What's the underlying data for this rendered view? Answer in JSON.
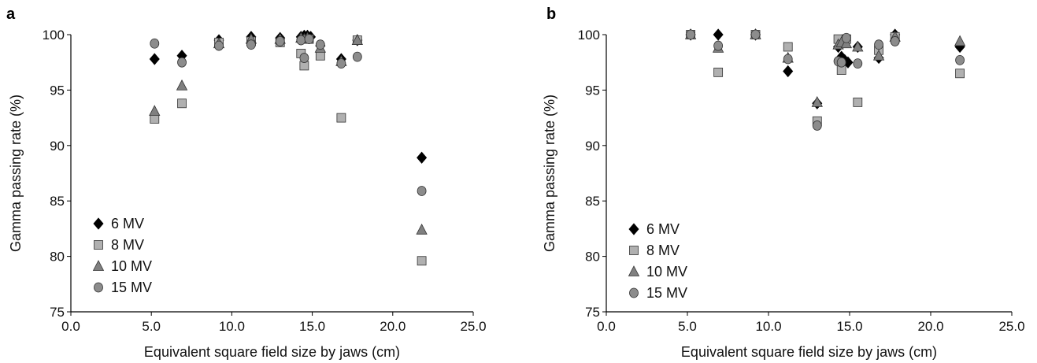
{
  "chart_data": [
    {
      "type": "scatter",
      "panel_label": "a",
      "xlabel": "Equivalent square field size by jaws (cm)",
      "ylabel": "Gamma passing rate (%)",
      "xlim": [
        0,
        25
      ],
      "ylim": [
        75,
        100
      ],
      "xticks": [
        "0.0",
        "5.0",
        "10.0",
        "15.0",
        "20.0",
        "25.0"
      ],
      "yticks": [
        "75",
        "80",
        "85",
        "90",
        "95",
        "100"
      ],
      "grid": false,
      "legend_position": "bottom-left",
      "series": [
        {
          "name": "6 MV",
          "marker": "diamond",
          "color": "#000000",
          "points": [
            [
              5.2,
              97.8
            ],
            [
              6.9,
              98.1
            ],
            [
              9.2,
              99.5
            ],
            [
              11.2,
              99.8
            ],
            [
              13.0,
              99.7
            ],
            [
              14.3,
              99.8
            ],
            [
              14.5,
              99.9
            ],
            [
              14.7,
              99.9
            ],
            [
              14.9,
              99.8
            ],
            [
              15.5,
              99.0
            ],
            [
              16.8,
              97.8
            ],
            [
              17.8,
              99.5
            ],
            [
              21.8,
              88.9
            ]
          ]
        },
        {
          "name": "8 MV",
          "marker": "square",
          "color": "#b0b0b0",
          "points": [
            [
              5.2,
              92.4
            ],
            [
              6.9,
              93.8
            ],
            [
              9.2,
              99.3
            ],
            [
              11.2,
              99.4
            ],
            [
              13.0,
              99.3
            ],
            [
              14.3,
              98.3
            ],
            [
              14.5,
              97.2
            ],
            [
              14.8,
              99.6
            ],
            [
              15.5,
              98.1
            ],
            [
              16.8,
              92.5
            ],
            [
              17.8,
              99.5
            ],
            [
              21.8,
              79.6
            ]
          ]
        },
        {
          "name": "10 MV",
          "marker": "triangle",
          "color": "#808080",
          "points": [
            [
              5.2,
              93.1
            ],
            [
              6.9,
              95.4
            ],
            [
              9.2,
              99.2
            ],
            [
              11.2,
              99.6
            ],
            [
              13.0,
              99.6
            ],
            [
              14.3,
              99.7
            ],
            [
              14.5,
              99.6
            ],
            [
              14.7,
              99.7
            ],
            [
              15.5,
              98.8
            ],
            [
              16.8,
              97.6
            ],
            [
              17.8,
              99.5
            ],
            [
              21.8,
              82.4
            ]
          ]
        },
        {
          "name": "15 MV",
          "marker": "circle",
          "color": "#8c8c8c",
          "points": [
            [
              5.2,
              99.2
            ],
            [
              6.9,
              97.5
            ],
            [
              9.2,
              99.0
            ],
            [
              11.2,
              99.1
            ],
            [
              13.0,
              99.4
            ],
            [
              14.3,
              99.5
            ],
            [
              14.5,
              97.9
            ],
            [
              14.8,
              99.6
            ],
            [
              15.5,
              99.1
            ],
            [
              16.8,
              97.4
            ],
            [
              17.8,
              98.0
            ],
            [
              21.8,
              85.9
            ]
          ]
        }
      ]
    },
    {
      "type": "scatter",
      "panel_label": "b",
      "xlabel": "Equivalent square field size by jaws (cm)",
      "ylabel": "Gamma passing rate (%)",
      "xlim": [
        0,
        25
      ],
      "ylim": [
        75,
        100
      ],
      "xticks": [
        "0.0",
        "5.0",
        "10.0",
        "15.0",
        "20.0",
        "25.0"
      ],
      "yticks": [
        "75",
        "80",
        "85",
        "90",
        "95",
        "100"
      ],
      "grid": false,
      "legend_position": "bottom-left",
      "series": [
        {
          "name": "6 MV",
          "marker": "diamond",
          "color": "#000000",
          "points": [
            [
              5.2,
              100.0
            ],
            [
              6.9,
              100.0
            ],
            [
              9.2,
              100.0
            ],
            [
              11.2,
              96.7
            ],
            [
              13.0,
              93.8
            ],
            [
              14.3,
              98.9
            ],
            [
              14.5,
              98.0
            ],
            [
              14.7,
              97.7
            ],
            [
              14.9,
              97.5
            ],
            [
              15.5,
              98.9
            ],
            [
              16.8,
              97.9
            ],
            [
              17.8,
              100.0
            ],
            [
              21.8,
              98.9
            ]
          ]
        },
        {
          "name": "8 MV",
          "marker": "square",
          "color": "#b0b0b0",
          "points": [
            [
              5.2,
              100.0
            ],
            [
              6.9,
              96.6
            ],
            [
              9.2,
              100.0
            ],
            [
              11.2,
              98.9
            ],
            [
              13.0,
              92.2
            ],
            [
              14.3,
              99.6
            ],
            [
              14.5,
              96.8
            ],
            [
              14.8,
              99.6
            ],
            [
              15.5,
              93.9
            ],
            [
              16.8,
              98.6
            ],
            [
              17.8,
              99.8
            ],
            [
              21.8,
              96.5
            ]
          ]
        },
        {
          "name": "10 MV",
          "marker": "triangle",
          "color": "#808080",
          "points": [
            [
              5.2,
              100.0
            ],
            [
              6.9,
              98.8
            ],
            [
              9.2,
              100.0
            ],
            [
              11.2,
              97.9
            ],
            [
              13.0,
              93.9
            ],
            [
              14.3,
              99.1
            ],
            [
              14.5,
              99.3
            ],
            [
              14.8,
              99.2
            ],
            [
              15.5,
              98.9
            ],
            [
              16.8,
              98.1
            ],
            [
              17.8,
              99.8
            ],
            [
              21.8,
              99.4
            ]
          ]
        },
        {
          "name": "15 MV",
          "marker": "circle",
          "color": "#8c8c8c",
          "points": [
            [
              5.2,
              100.0
            ],
            [
              6.9,
              99.0
            ],
            [
              9.2,
              100.0
            ],
            [
              11.2,
              97.8
            ],
            [
              13.0,
              91.8
            ],
            [
              14.3,
              97.6
            ],
            [
              14.5,
              97.5
            ],
            [
              14.8,
              99.7
            ],
            [
              15.5,
              97.4
            ],
            [
              16.8,
              99.1
            ],
            [
              17.8,
              99.4
            ],
            [
              21.8,
              97.7
            ]
          ]
        }
      ]
    }
  ]
}
